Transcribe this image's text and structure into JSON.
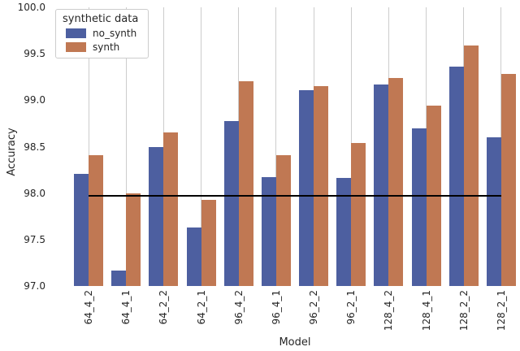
{
  "figure": {
    "background": "#ffffff",
    "text_color": "#262626",
    "gridline_color": "#cccccc"
  },
  "chart_data": {
    "type": "bar",
    "title": "",
    "xlabel": "Model",
    "ylabel": "Accuracy",
    "ylim": [
      97.0,
      100.0
    ],
    "yticks": [
      100.0,
      99.5,
      99.0,
      98.5,
      98.0,
      97.5,
      97.0
    ],
    "grid": "vertical-only",
    "legend": {
      "title": "synthetic data",
      "position": "upper-left",
      "entries": [
        {
          "label": "no_synth",
          "color": "#4d5fa0"
        },
        {
          "label": "synth",
          "color": "#c07853"
        }
      ]
    },
    "categories": [
      "64_4_2",
      "64_4_1",
      "64_2_2",
      "64_2_1",
      "96_4_2",
      "96_4_1",
      "96_2_2",
      "96_2_1",
      "128_4_2",
      "128_4_1",
      "128_2_2",
      "128_2_1"
    ],
    "series": [
      {
        "name": "no_synth",
        "color": "#4d5fa0",
        "values": [
          98.21,
          97.17,
          98.5,
          97.63,
          98.78,
          98.17,
          99.11,
          98.16,
          99.17,
          98.7,
          99.36,
          98.6
        ]
      },
      {
        "name": "synth",
        "color": "#c07853",
        "values": [
          98.41,
          98.0,
          98.65,
          97.93,
          99.2,
          98.41,
          99.15,
          98.54,
          99.24,
          98.94,
          99.59,
          99.28
        ]
      }
    ],
    "reference_line": {
      "value": 97.97,
      "color": "#000000",
      "extent": "from first category center to last category center"
    }
  }
}
